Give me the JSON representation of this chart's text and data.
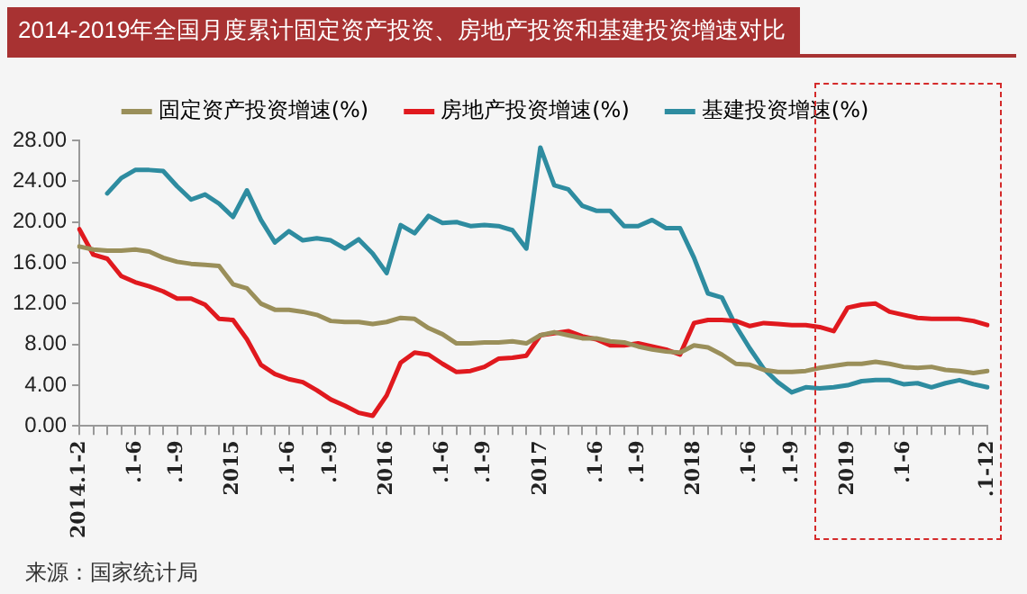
{
  "chart_data": {
    "type": "line",
    "title": "2014-2019年全国月度累计固定资产投资、房地产投资和基建投资增速对比",
    "categories": [
      "2014.1-2",
      null,
      null,
      null,
      ".1-6",
      null,
      null,
      ".1-9",
      null,
      null,
      null,
      "2015",
      null,
      null,
      null,
      ".1-6",
      null,
      null,
      ".1-9",
      null,
      null,
      null,
      "2016",
      null,
      null,
      null,
      ".1-6",
      null,
      null,
      ".1-9",
      null,
      null,
      null,
      "2017",
      null,
      null,
      null,
      ".1-6",
      null,
      null,
      ".1-9",
      null,
      null,
      null,
      "2018",
      null,
      null,
      null,
      ".1-6",
      null,
      null,
      ".1-9",
      null,
      null,
      null,
      "2019",
      null,
      null,
      null,
      ".1-6",
      null,
      null,
      null,
      null,
      null,
      ".1-12"
    ],
    "series": [
      {
        "name": "固定资产投资增速(%)",
        "color": "#9a8f5a",
        "values": [
          17.6,
          17.3,
          17.2,
          17.2,
          17.3,
          17.1,
          16.5,
          16.1,
          15.9,
          15.8,
          15.7,
          13.9,
          13.5,
          12.0,
          11.4,
          11.4,
          11.2,
          10.9,
          10.3,
          10.2,
          10.2,
          10.0,
          10.2,
          10.6,
          10.5,
          9.6,
          9.0,
          8.1,
          8.1,
          8.2,
          8.2,
          8.3,
          8.1,
          8.9,
          9.2,
          8.9,
          8.6,
          8.6,
          8.3,
          8.2,
          7.8,
          7.5,
          7.3,
          7.2,
          7.9,
          7.7,
          7.0,
          6.1,
          6.0,
          5.5,
          5.3,
          5.3,
          5.4,
          5.7,
          5.9,
          6.1,
          6.1,
          6.3,
          6.1,
          5.8,
          5.7,
          5.8,
          5.5,
          5.4,
          5.2,
          5.4
        ]
      },
      {
        "name": "房地产投资增速(%)",
        "color": "#e0191e",
        "values": [
          19.3,
          16.8,
          16.4,
          14.7,
          14.1,
          13.7,
          13.2,
          12.5,
          12.5,
          11.9,
          10.5,
          10.4,
          8.5,
          6.0,
          5.1,
          4.6,
          4.3,
          3.5,
          2.6,
          2.0,
          1.3,
          1.0,
          3.0,
          6.2,
          7.2,
          7.0,
          6.1,
          5.3,
          5.4,
          5.8,
          6.6,
          6.7,
          6.9,
          8.9,
          9.1,
          9.3,
          8.8,
          8.5,
          7.9,
          7.9,
          8.1,
          7.8,
          7.5,
          7.0,
          10.1,
          10.4,
          10.4,
          10.3,
          9.8,
          10.1,
          10.0,
          9.9,
          9.9,
          9.7,
          9.3,
          11.6,
          11.9,
          12.0,
          11.2,
          10.9,
          10.6,
          10.5,
          10.5,
          10.5,
          10.3,
          9.9
        ]
      },
      {
        "name": "基建投资增速(%)",
        "color": "#2e8ca0",
        "values": [
          null,
          null,
          22.8,
          24.3,
          25.1,
          25.1,
          25.0,
          23.5,
          22.2,
          22.7,
          21.8,
          20.5,
          23.1,
          20.2,
          18.0,
          19.1,
          18.2,
          18.4,
          18.2,
          17.4,
          18.3,
          16.9,
          15.0,
          19.7,
          18.9,
          20.6,
          19.9,
          20.0,
          19.6,
          19.7,
          19.6,
          19.2,
          17.4,
          27.3,
          23.6,
          23.2,
          21.6,
          21.1,
          21.1,
          19.6,
          19.6,
          20.2,
          19.4,
          19.4,
          16.5,
          13.0,
          12.6,
          9.8,
          7.6,
          5.6,
          4.3,
          3.3,
          3.8,
          3.7,
          3.8,
          4.0,
          4.4,
          4.5,
          4.5,
          4.1,
          4.2,
          3.8,
          4.2,
          4.5,
          4.1,
          3.8
        ]
      }
    ],
    "ylim": [
      0,
      28
    ],
    "yticks": [
      {
        "value": 0,
        "label": "0.00"
      },
      {
        "value": 4,
        "label": "4.00"
      },
      {
        "value": 8,
        "label": "8.00"
      },
      {
        "value": 12,
        "label": "12.00"
      },
      {
        "value": 16,
        "label": "16.00"
      },
      {
        "value": 20,
        "label": "20.00"
      },
      {
        "value": 24,
        "label": "24.00"
      },
      {
        "value": 28,
        "label": "28.00"
      }
    ],
    "grid": false,
    "legend": "top",
    "marker": "none",
    "line_style": "solid",
    "annotations": [
      "来源：国家统计局"
    ]
  }
}
